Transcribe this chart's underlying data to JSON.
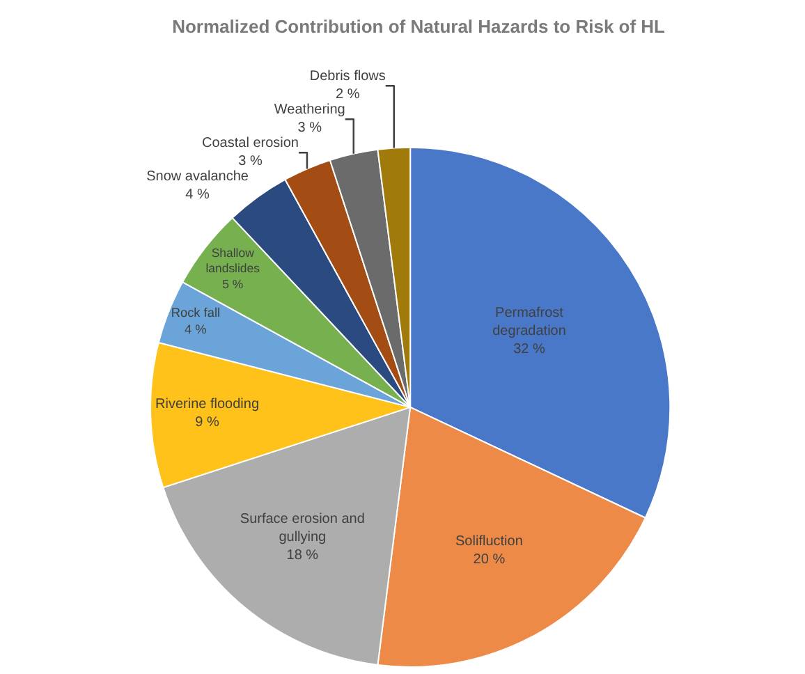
{
  "chart_data": {
    "type": "pie",
    "title": "Normalized Contribution of Natural Hazards to Risk of HL",
    "categories": [
      "Permafrost degradation",
      "Solifluction",
      "Surface erosion and gullying",
      "Riverine flooding",
      "Rock fall",
      "Shallow landslides",
      "Snow avalanche",
      "Coastal erosion",
      "Weathering",
      "Debris flows"
    ],
    "values": [
      32,
      20,
      18,
      9,
      4,
      5,
      4,
      3,
      3,
      2
    ],
    "value_labels": [
      "32 %",
      "20 %",
      "18 %",
      "9 %",
      "4 %",
      "5 %",
      "4 %",
      "3 %",
      "3 %",
      "2 %"
    ],
    "colors": [
      "#4a78c8",
      "#ee8a47",
      "#adadad",
      "#ffc21a",
      "#6aa4d9",
      "#77b14f",
      "#2a4a80",
      "#a34d14",
      "#6b6b6b",
      "#a07a0a"
    ],
    "legend": false
  }
}
